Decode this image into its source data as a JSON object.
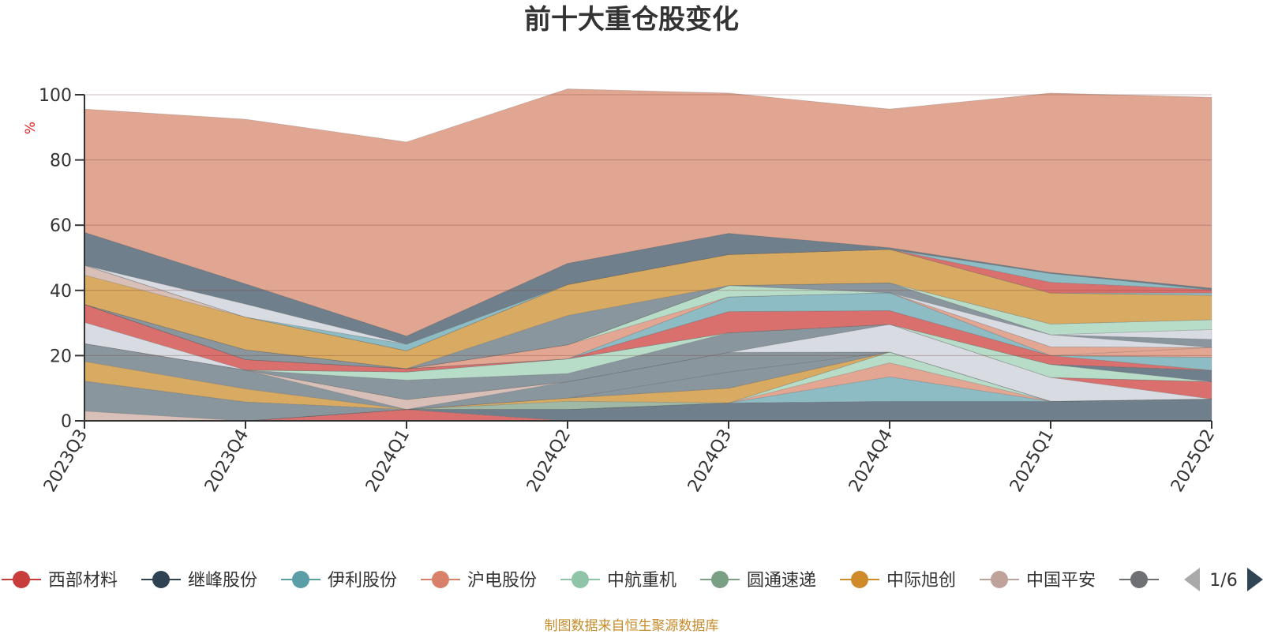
{
  "chart_data": {
    "type": "area",
    "title": "前十大重仓股变化",
    "ylabel": "%",
    "ylim": [
      0,
      100
    ],
    "yticks": [
      0,
      20,
      40,
      60,
      80,
      100
    ],
    "grid": true,
    "categories": [
      "2023Q3",
      "2023Q4",
      "2024Q1",
      "2024Q2",
      "2024Q3",
      "2024Q4",
      "2025Q1",
      "2025Q2"
    ],
    "series": [
      {
        "name": "西部材料",
        "values": [
          0,
          0,
          3.5,
          0,
          0,
          0,
          0,
          0
        ],
        "color": "#d9706e"
      },
      {
        "name": "继峰股份",
        "values": [
          0,
          0,
          0,
          3.5,
          5.5,
          6,
          6,
          6.7
        ],
        "color": "#6f7f8c"
      },
      {
        "name": "伊利股份",
        "values": [
          0,
          0,
          0,
          0,
          0,
          7.5,
          0,
          0
        ],
        "color": "#8ebcc4"
      },
      {
        "name": "沪电股份",
        "values": [
          0,
          0,
          0,
          0,
          0,
          4.3,
          0,
          0
        ],
        "color": "#e2a693"
      },
      {
        "name": "中航重机",
        "values": [
          0,
          0,
          0,
          0,
          0,
          3.3,
          0,
          0
        ],
        "color": "#b7dcc8"
      },
      {
        "name": "圆通速递",
        "values": [
          0,
          0,
          0,
          2.5,
          0,
          0,
          0,
          0
        ],
        "color": "#9fb9a6"
      },
      {
        "name": "中际旭创",
        "values": [
          0,
          0,
          0,
          1,
          4.5,
          0,
          0,
          0
        ],
        "color": "#d9ab62"
      },
      {
        "name": "中国平安",
        "values": [
          3,
          0,
          0,
          0,
          0,
          0,
          0,
          0
        ],
        "color": "#d8c0b8"
      },
      {
        "name": "",
        "values": [
          9.2,
          5.8,
          0,
          0,
          5,
          0,
          0,
          0
        ],
        "color": "#8a969e"
      },
      {
        "name": "",
        "values": [
          6,
          4,
          0,
          0,
          0,
          0,
          0,
          0
        ],
        "color": "#d9ab62"
      },
      {
        "name": "",
        "values": [
          5.5,
          5.8,
          0,
          5,
          6,
          0,
          0,
          0
        ],
        "color": "#8a969e"
      },
      {
        "name": "",
        "values": [
          0,
          0,
          3,
          0,
          0,
          0,
          0,
          0
        ],
        "color": "#d8c0b8"
      },
      {
        "name": "",
        "values": [
          0,
          0,
          0,
          0,
          0,
          8.5,
          7.3,
          0
        ],
        "color": "#d8dce2"
      },
      {
        "name": "",
        "values": [
          0,
          0,
          0,
          0,
          0,
          0,
          0,
          5.3
        ],
        "color": "#d9706e"
      },
      {
        "name": "",
        "values": [
          0,
          0,
          6,
          2.5,
          6,
          0,
          0,
          0
        ],
        "color": "#8a969e"
      },
      {
        "name": "",
        "values": [
          0,
          0,
          2.5,
          4.5,
          0,
          0,
          4,
          0
        ],
        "color": "#b7dcc8"
      },
      {
        "name": "",
        "values": [
          0,
          0,
          0,
          0,
          0,
          0,
          0,
          3.5
        ],
        "color": "#6f7f8c"
      },
      {
        "name": "",
        "values": [
          6.5,
          0,
          0,
          0,
          0,
          0,
          0,
          0
        ],
        "color": "#d8dce2"
      },
      {
        "name": "",
        "values": [
          5.5,
          3.2,
          1,
          0,
          6.5,
          4.2,
          2.7,
          0
        ],
        "color": "#d9706e"
      },
      {
        "name": "",
        "values": [
          0,
          0,
          0,
          0,
          0,
          0,
          0,
          4
        ],
        "color": "#8ebcc4"
      },
      {
        "name": "",
        "values": [
          0,
          0,
          0,
          0,
          4.5,
          5.5,
          0,
          0
        ],
        "color": "#8ebcc4"
      },
      {
        "name": "",
        "values": [
          0,
          0,
          0,
          0,
          0,
          0,
          0,
          3
        ],
        "color": "#e2a693"
      },
      {
        "name": "",
        "values": [
          0,
          0,
          0,
          4.3,
          0,
          0,
          2.7,
          0
        ],
        "color": "#e2a693"
      },
      {
        "name": "",
        "values": [
          0,
          0,
          0,
          0,
          3.5,
          0,
          0,
          0
        ],
        "color": "#b7dcc8"
      },
      {
        "name": "",
        "values": [
          0,
          0,
          0,
          0,
          0,
          0,
          3.7,
          0
        ],
        "color": "#d8dce2"
      },
      {
        "name": "",
        "values": [
          0,
          3,
          0,
          0,
          0,
          3,
          0,
          2.5
        ],
        "color": "#8a969e"
      },
      {
        "name": "",
        "values": [
          0,
          0,
          0,
          0,
          0,
          0,
          0,
          3
        ],
        "color": "#d8dce2"
      },
      {
        "name": "",
        "values": [
          0,
          0,
          0,
          0,
          0,
          0,
          3.3,
          3
        ],
        "color": "#b7dcc8"
      },
      {
        "name": "",
        "values": [
          0,
          0,
          0,
          9,
          0,
          0,
          0,
          0
        ],
        "color": "#8a969e"
      },
      {
        "name": "",
        "values": [
          9,
          10,
          5.5,
          9.5,
          9.5,
          10.3,
          9.5,
          7.5
        ],
        "color": "#d9ab62"
      },
      {
        "name": "",
        "values": [
          3,
          0,
          0,
          0,
          0,
          0,
          0,
          0
        ],
        "color": "#d8c0b8"
      },
      {
        "name": "",
        "values": [
          0,
          0,
          0,
          0,
          0,
          0,
          0,
          0.7
        ],
        "color": "#8ebcc4"
      },
      {
        "name": "",
        "values": [
          0,
          0,
          0,
          0,
          0,
          0,
          3.3,
          1
        ],
        "color": "#d9706e"
      },
      {
        "name": "",
        "values": [
          0,
          0,
          2,
          0,
          0,
          0,
          2.7,
          0
        ],
        "color": "#8ebcc4"
      },
      {
        "name": "",
        "values": [
          0,
          4,
          0,
          0,
          0,
          0,
          0,
          0
        ],
        "color": "#d8dce2"
      },
      {
        "name": "",
        "values": [
          10.1,
          6.2,
          2.5,
          6.5,
          6.5,
          0.5,
          0.3,
          0.5
        ],
        "color": "#6f7f8c"
      },
      {
        "name": "",
        "values": [
          0,
          0,
          0,
          0,
          0,
          0,
          0,
          0
        ],
        "color": "#8a969e"
      },
      {
        "name": "",
        "values": [
          37.8,
          50.5,
          59.5,
          53.5,
          43,
          42.5,
          55,
          58.5
        ],
        "color": "#e0a692"
      }
    ]
  },
  "legend": {
    "items": [
      {
        "label": "西部材料",
        "color": "#c93c3c"
      },
      {
        "label": "继峰股份",
        "color": "#2f4254"
      },
      {
        "label": "伊利股份",
        "color": "#5b9ea8"
      },
      {
        "label": "沪电股份",
        "color": "#d9806a"
      },
      {
        "label": "中航重机",
        "color": "#8ec5a8"
      },
      {
        "label": "圆通速递",
        "color": "#79a084"
      },
      {
        "label": "中际旭创",
        "color": "#cf8a2a"
      },
      {
        "label": "中国平安",
        "color": "#bfa29a"
      },
      {
        "label": "",
        "color": "#6e7074"
      }
    ],
    "page_label": "1/6"
  },
  "footer": "制图数据来自恒生聚源数据库"
}
